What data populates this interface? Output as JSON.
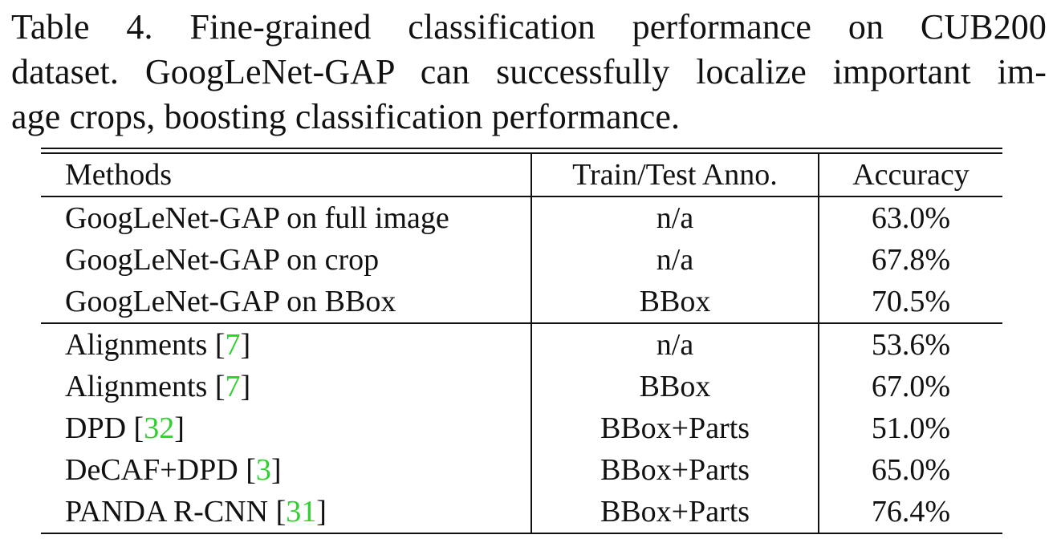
{
  "caption": {
    "line1": "Table 4. Fine-grained classification performance on CUB200",
    "line2": "dataset. GoogLeNet-GAP can successfully localize important im-",
    "line3": "age crops, boosting classification performance."
  },
  "table": {
    "headers": {
      "methods": "Methods",
      "anno": "Train/Test Anno.",
      "accuracy": "Accuracy"
    },
    "rows": [
      {
        "method": "GoogLeNet-GAP on full image",
        "ref": "",
        "anno": "n/a",
        "accuracy": "63.0%"
      },
      {
        "method": "GoogLeNet-GAP on crop",
        "ref": "",
        "anno": "n/a",
        "accuracy": "67.8%"
      },
      {
        "method": "GoogLeNet-GAP on BBox",
        "ref": "",
        "anno": "BBox",
        "accuracy": "70.5%"
      },
      {
        "method": "Alignments",
        "ref": "7",
        "anno": "n/a",
        "accuracy": "53.6%"
      },
      {
        "method": "Alignments",
        "ref": "7",
        "anno": "BBox",
        "accuracy": "67.0%"
      },
      {
        "method": "DPD",
        "ref": "32",
        "anno": "BBox+Parts",
        "accuracy": "51.0%"
      },
      {
        "method": "DeCAF+DPD",
        "ref": "3",
        "anno": "BBox+Parts",
        "accuracy": "65.0%"
      },
      {
        "method": "PANDA R-CNN",
        "ref": "31",
        "anno": "BBox+Parts",
        "accuracy": "76.4%"
      }
    ]
  },
  "colors": {
    "text": "#111111",
    "citation": "#2fd12f"
  }
}
